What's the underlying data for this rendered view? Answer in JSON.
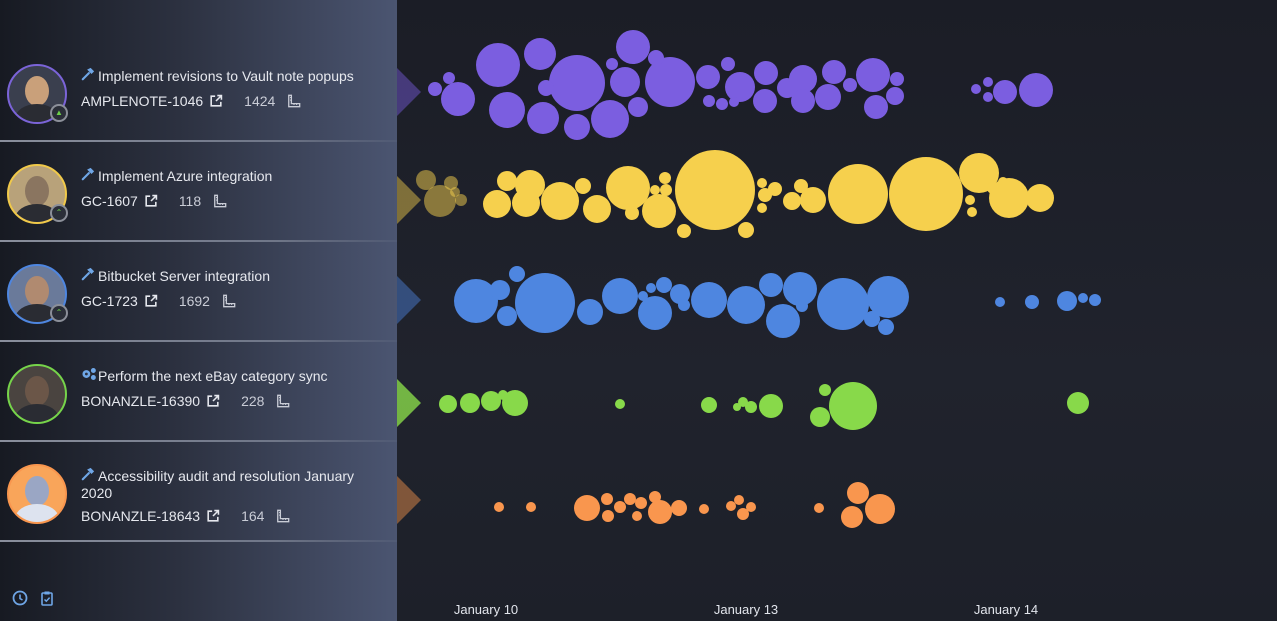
{
  "rows": [
    {
      "icon": "hammer-icon",
      "title": "Implement revisions to Vault note popups",
      "key": "AMPLENOTE-1046",
      "count": "1424",
      "color": "#7b5ee0",
      "avatar_border": "#7b64d8",
      "badge": "up-arrow-icon"
    },
    {
      "icon": "hammer-icon",
      "title": "Implement Azure integration",
      "key": "GC-1607",
      "count": "118",
      "color": "#f6d04d",
      "avatar_border": "#f0c94a",
      "badge": "double-chevron-up-icon"
    },
    {
      "icon": "hammer-icon",
      "title": "Bitbucket Server integration",
      "key": "GC-1723",
      "count": "1692",
      "color": "#4e86e0",
      "avatar_border": "#4e86e0",
      "badge": "double-chevron-up-icon"
    },
    {
      "icon": "gears-icon",
      "title": "Perform the next eBay category sync",
      "key": "BONANZLE-16390",
      "count": "228",
      "color": "#88d94a",
      "avatar_border": "#76d44a",
      "badge": ""
    },
    {
      "icon": "hammer-icon",
      "title": "Accessibility audit and resolution January 2020",
      "key": "BONANZLE-18643",
      "count": "164",
      "color": "#f9964e",
      "avatar_border": "#f9964e",
      "badge": ""
    }
  ],
  "axis": {
    "ticks": [
      "January 10",
      "January 13",
      "January 14"
    ]
  },
  "footer": {
    "icons": [
      "clock-icon",
      "clipboard-check-icon"
    ]
  },
  "colors": {
    "accent_icon": "#6fa6e6",
    "sidebar_dark": "#171a22",
    "sidebar_light": "#4b5571",
    "background": "#1c1f28"
  }
}
